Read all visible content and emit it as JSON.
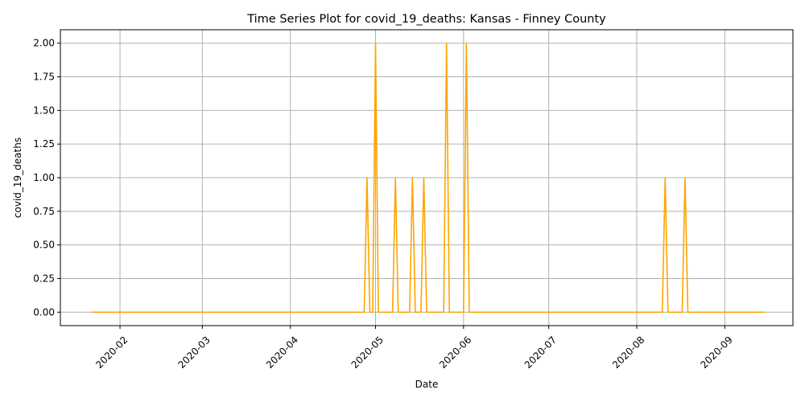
{
  "chart_data": {
    "type": "line",
    "title": "Time Series Plot for covid_19_deaths: Kansas - Finney County",
    "xlabel": "Date",
    "ylabel": "covid_19_deaths",
    "x_range": [
      "2020-01-11",
      "2020-09-25"
    ],
    "ylim": [
      -0.1,
      2.1
    ],
    "x_ticks": [
      "2020-02-01",
      "2020-03-01",
      "2020-04-01",
      "2020-05-01",
      "2020-06-01",
      "2020-07-01",
      "2020-08-01",
      "2020-09-01"
    ],
    "x_tick_labels": [
      "2020-02",
      "2020-03",
      "2020-04",
      "2020-05",
      "2020-06",
      "2020-07",
      "2020-08",
      "2020-09"
    ],
    "y_ticks": [
      0,
      0.25,
      0.5,
      0.75,
      1,
      1.25,
      1.5,
      1.75,
      2
    ],
    "y_tick_labels": [
      "0.00",
      "0.25",
      "0.50",
      "0.75",
      "1.00",
      "1.25",
      "1.50",
      "1.75",
      "2.00"
    ],
    "grid": true,
    "series": [
      {
        "color": "#ffa500",
        "start": "2020-01-22",
        "end": "2020-09-15",
        "baseline": 0,
        "points": [
          {
            "x": "2020-04-28",
            "y": 1
          },
          {
            "x": "2020-05-01",
            "y": 2
          },
          {
            "x": "2020-05-08",
            "y": 1
          },
          {
            "x": "2020-05-14",
            "y": 1
          },
          {
            "x": "2020-05-18",
            "y": 1
          },
          {
            "x": "2020-05-26",
            "y": 2
          },
          {
            "x": "2020-06-02",
            "y": 2
          },
          {
            "x": "2020-08-11",
            "y": 1
          },
          {
            "x": "2020-08-18",
            "y": 1
          }
        ]
      }
    ]
  }
}
